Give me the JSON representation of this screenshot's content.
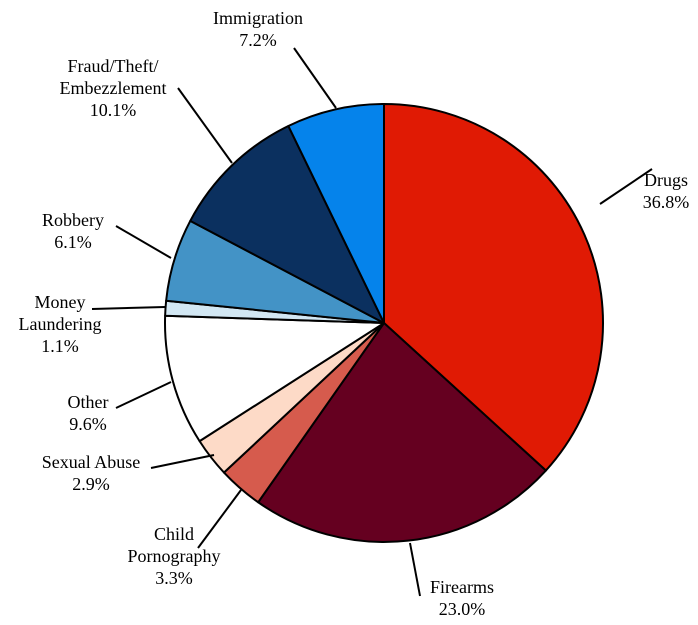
{
  "chart_data": {
    "type": "pie",
    "title": "",
    "direction": "clockwise",
    "start": "12 o'clock",
    "legend": "none",
    "slices": [
      {
        "label": "Drugs",
        "value": 36.8,
        "value_label": "36.8%",
        "color": "#E01A04"
      },
      {
        "label": "Firearms",
        "value": 23.0,
        "value_label": "23.0%",
        "color": "#650020"
      },
      {
        "label": "Child Pornography",
        "value": 3.3,
        "value_label": "3.3%",
        "color": "#D65B4D"
      },
      {
        "label": "Sexual Abuse",
        "value": 2.9,
        "value_label": "2.9%",
        "color": "#FDDAC7"
      },
      {
        "label": "Other",
        "value": 9.6,
        "value_label": "9.6%",
        "color": "#FFFFFF"
      },
      {
        "label": "Money Laundering",
        "value": 1.1,
        "value_label": "1.1%",
        "color": "#D2E7F3"
      },
      {
        "label": "Robbery",
        "value": 6.1,
        "value_label": "6.1%",
        "color": "#4393C6"
      },
      {
        "label": "Fraud/Theft/ Embezzlement",
        "value": 10.1,
        "value_label": "10.1%",
        "color": "#0B305F"
      },
      {
        "label": "Immigration",
        "value": 7.2,
        "value_label": "7.2%",
        "color": "#0583EB"
      }
    ]
  }
}
